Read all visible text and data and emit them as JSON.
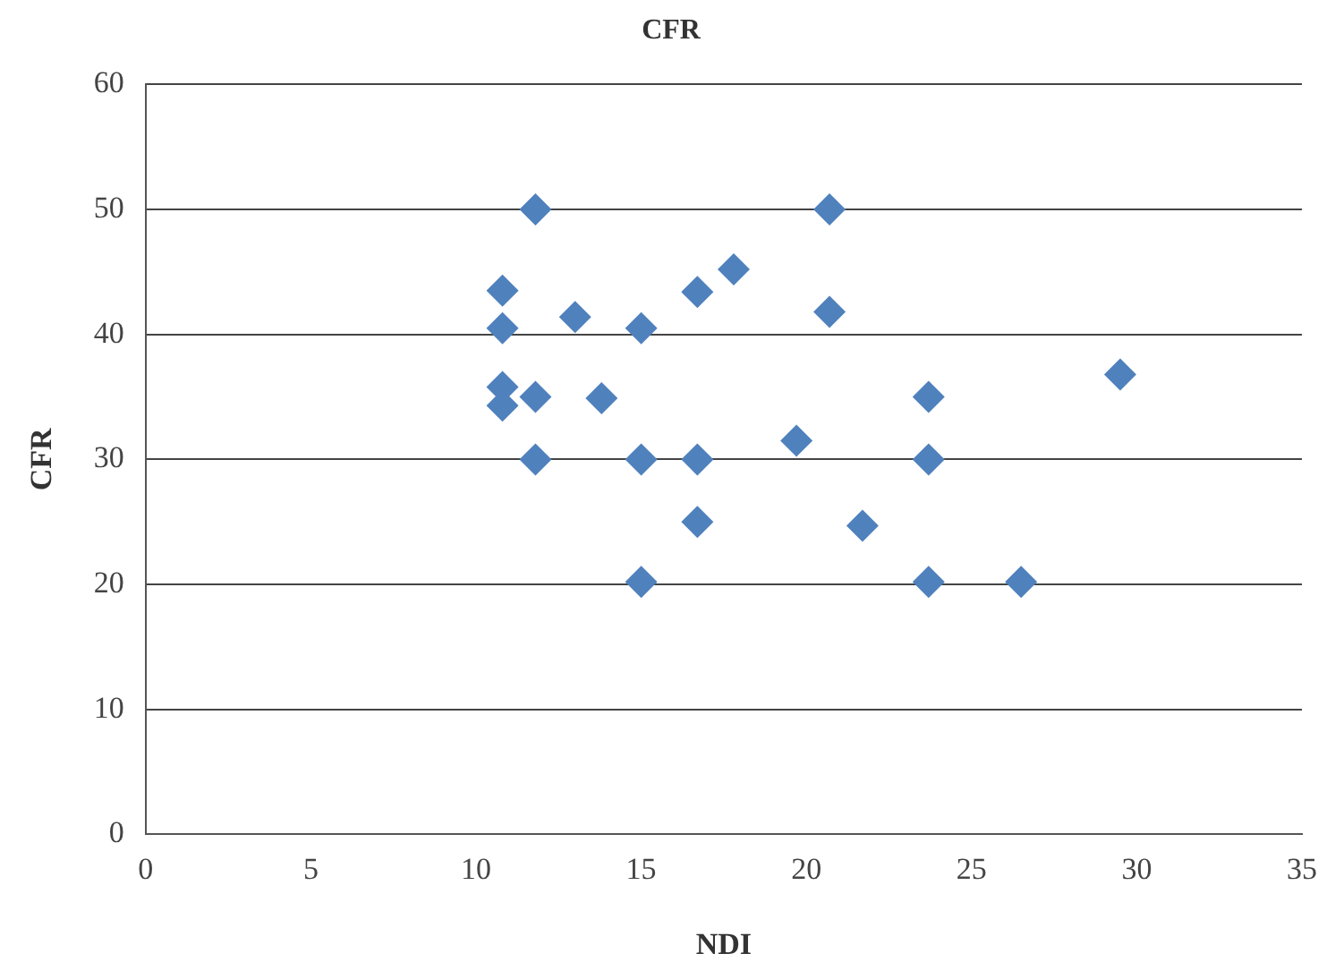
{
  "chart_data": {
    "type": "scatter",
    "title": "CFR",
    "xlabel": "NDI",
    "ylabel": "CFR",
    "x": [
      10.8,
      10.8,
      10.8,
      10.8,
      11.8,
      11.8,
      11.8,
      13.0,
      13.8,
      15.0,
      15.0,
      15.0,
      16.7,
      16.7,
      16.7,
      17.8,
      19.7,
      20.7,
      20.7,
      21.7,
      23.7,
      23.7,
      23.7,
      26.5,
      29.5
    ],
    "values": [
      43.5,
      40.5,
      35.8,
      34.3,
      50,
      35,
      30,
      41.4,
      34.9,
      40.5,
      30,
      20.2,
      43.4,
      30,
      25,
      45.2,
      31.5,
      50,
      41.8,
      24.7,
      35,
      30,
      20.2,
      20.2,
      36.8
    ],
    "color": "#4f81bd",
    "marker": "diamond",
    "grid": "y",
    "legend": false,
    "xlim": [
      0,
      35
    ],
    "xticks": [
      0,
      5,
      10,
      15,
      20,
      25,
      30,
      35
    ],
    "ylim": [
      0,
      60
    ],
    "yticks": [
      0,
      10,
      20,
      30,
      40,
      50,
      60
    ]
  }
}
